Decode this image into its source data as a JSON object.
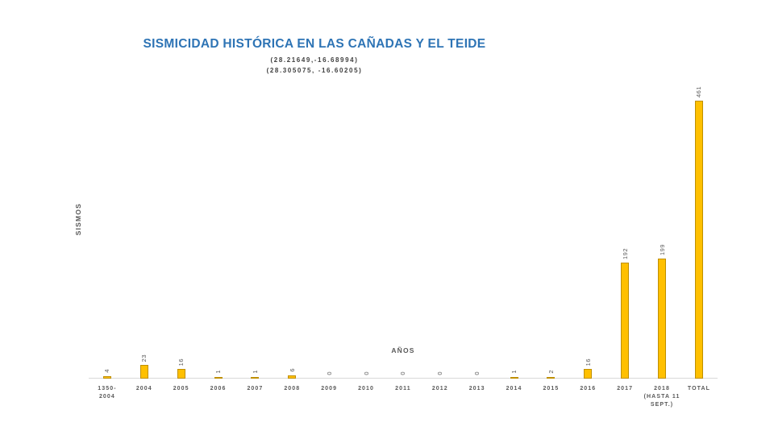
{
  "chart_data": {
    "type": "bar",
    "title": "SISMICIDAD HISTÓRICA EN LAS CAÑADAS Y EL TEIDE",
    "subtitle1": "(28.21649,-16.68994)",
    "subtitle2": "(28.305075, -16.60205)",
    "xlabel": "AÑOS",
    "ylabel": "SISMOS",
    "categories": [
      "1350-\n2004",
      "2004",
      "2005",
      "2006",
      "2007",
      "2008",
      "2009",
      "2010",
      "2011",
      "2012",
      "2013",
      "2014",
      "2015",
      "2016",
      "2017",
      "2018\n(HASTA 11\nSEPT.)",
      "TOTAL"
    ],
    "values": [
      4,
      23,
      16,
      1,
      1,
      6,
      0,
      0,
      0,
      0,
      0,
      1,
      2,
      16,
      192,
      199,
      461
    ],
    "ylim": [
      0,
      461
    ],
    "grid": false,
    "legend": "none",
    "bar_color": "#FFC000",
    "bar_border_color": "#BF8F00",
    "title_color": "#2E74B5",
    "label_color": "#595959",
    "axis_line_color": "#D9D9D9"
  }
}
